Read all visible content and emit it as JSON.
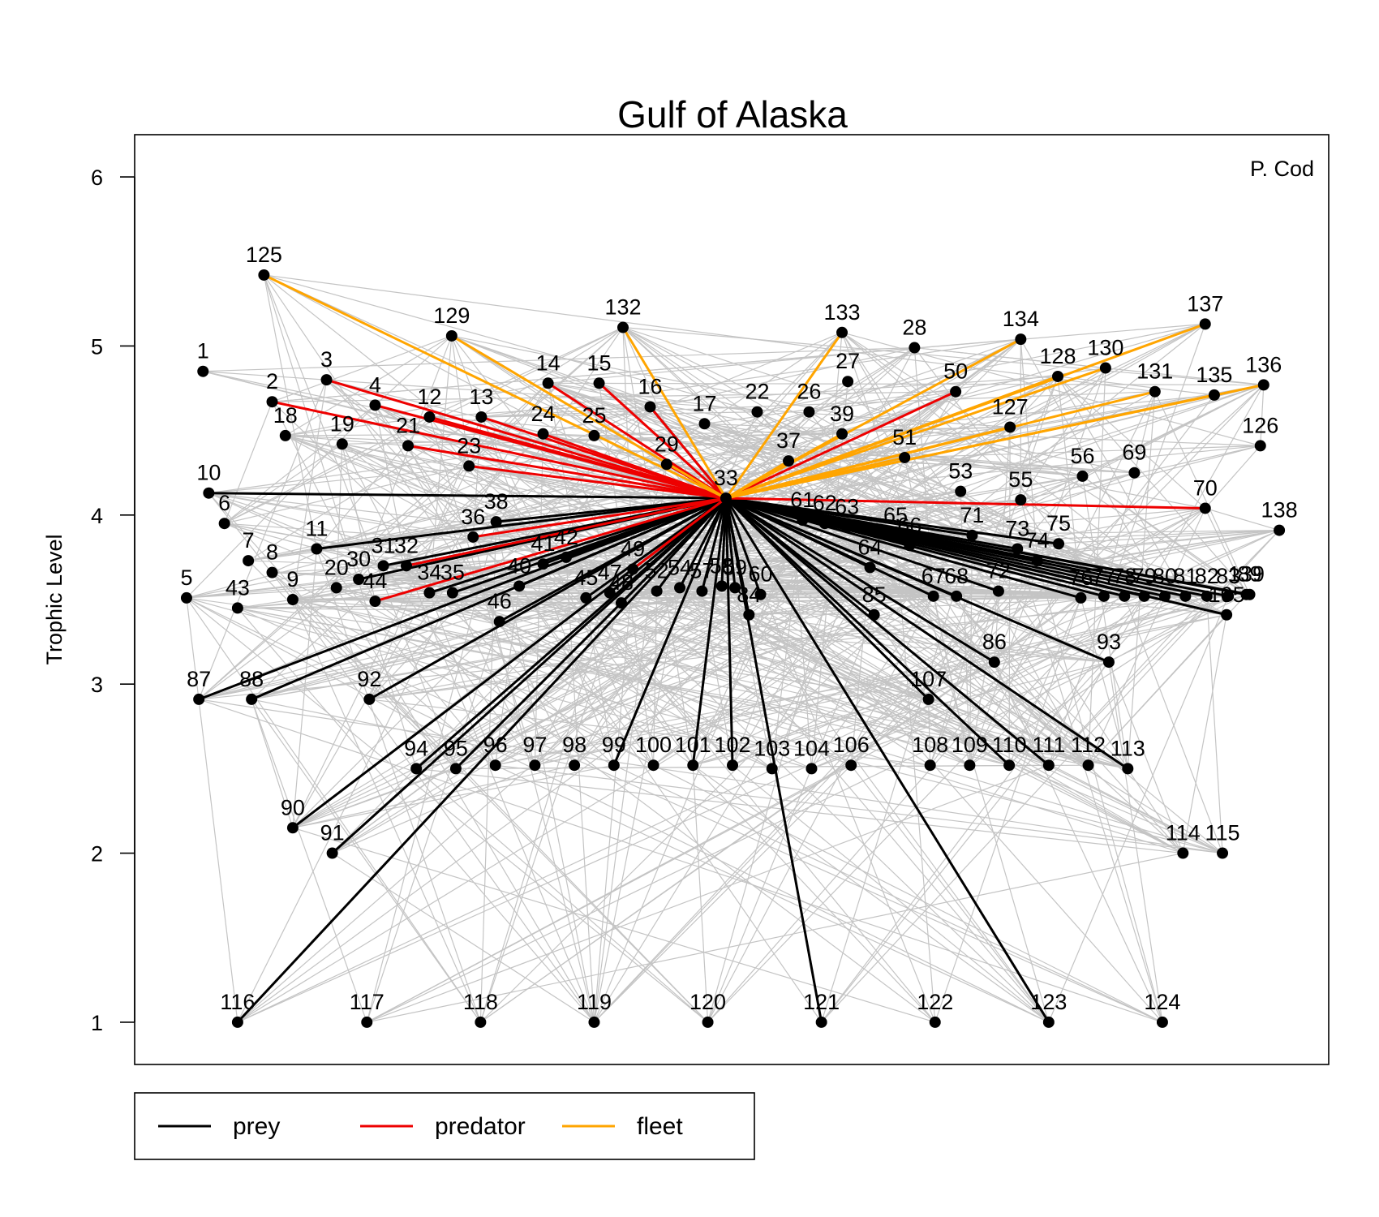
{
  "chart_data": {
    "type": "network",
    "title": "Gulf of Alaska",
    "ylabel": "Trophic Level",
    "xlabel": "",
    "ylim": [
      0.75,
      6.25
    ],
    "yticks": [
      1,
      2,
      3,
      4,
      5,
      6
    ],
    "xlim": [
      0,
      145
    ],
    "corner_label": "P. Cod",
    "focal_node": "33",
    "legend": [
      {
        "label": "prey",
        "color": "#000000"
      },
      {
        "label": "predator",
        "color": "#ee0000"
      },
      {
        "label": "fleet",
        "color": "#ffa500"
      }
    ],
    "nodes": [
      {
        "id": "1",
        "x": 8.3,
        "tl": 4.85
      },
      {
        "id": "2",
        "x": 16.7,
        "tl": 4.67
      },
      {
        "id": "3",
        "x": 23.3,
        "tl": 4.8
      },
      {
        "id": "4",
        "x": 29.2,
        "tl": 4.65
      },
      {
        "id": "5",
        "x": 6.3,
        "tl": 3.51
      },
      {
        "id": "6",
        "x": 10.9,
        "tl": 3.95
      },
      {
        "id": "7",
        "x": 13.8,
        "tl": 3.73
      },
      {
        "id": "8",
        "x": 16.7,
        "tl": 3.66
      },
      {
        "id": "9",
        "x": 19.2,
        "tl": 3.5
      },
      {
        "id": "10",
        "x": 9.0,
        "tl": 4.13
      },
      {
        "id": "11",
        "x": 22.1,
        "tl": 3.8
      },
      {
        "id": "12",
        "x": 35.8,
        "tl": 4.58
      },
      {
        "id": "13",
        "x": 42.1,
        "tl": 4.58
      },
      {
        "id": "14",
        "x": 50.2,
        "tl": 4.78
      },
      {
        "id": "15",
        "x": 56.4,
        "tl": 4.78
      },
      {
        "id": "16",
        "x": 62.6,
        "tl": 4.64
      },
      {
        "id": "17",
        "x": 69.2,
        "tl": 4.54
      },
      {
        "id": "18",
        "x": 18.3,
        "tl": 4.47
      },
      {
        "id": "19",
        "x": 25.2,
        "tl": 4.42
      },
      {
        "id": "20",
        "x": 24.5,
        "tl": 3.57
      },
      {
        "id": "21",
        "x": 33.2,
        "tl": 4.41
      },
      {
        "id": "22",
        "x": 75.6,
        "tl": 4.61
      },
      {
        "id": "23",
        "x": 40.6,
        "tl": 4.29
      },
      {
        "id": "24",
        "x": 49.6,
        "tl": 4.48
      },
      {
        "id": "25",
        "x": 55.8,
        "tl": 4.47
      },
      {
        "id": "26",
        "x": 81.9,
        "tl": 4.61
      },
      {
        "id": "27",
        "x": 86.6,
        "tl": 4.79
      },
      {
        "id": "28",
        "x": 94.7,
        "tl": 4.99
      },
      {
        "id": "29",
        "x": 64.6,
        "tl": 4.3
      },
      {
        "id": "30",
        "x": 27.2,
        "tl": 3.62
      },
      {
        "id": "31",
        "x": 30.2,
        "tl": 3.7
      },
      {
        "id": "32",
        "x": 33.0,
        "tl": 3.7
      },
      {
        "id": "33",
        "x": 71.8,
        "tl": 4.1
      },
      {
        "id": "34",
        "x": 35.8,
        "tl": 3.54
      },
      {
        "id": "35",
        "x": 38.6,
        "tl": 3.54
      },
      {
        "id": "36",
        "x": 41.1,
        "tl": 3.87
      },
      {
        "id": "37",
        "x": 79.4,
        "tl": 4.32
      },
      {
        "id": "38",
        "x": 43.9,
        "tl": 3.96
      },
      {
        "id": "39",
        "x": 85.9,
        "tl": 4.48
      },
      {
        "id": "40",
        "x": 46.7,
        "tl": 3.58
      },
      {
        "id": "41",
        "x": 49.6,
        "tl": 3.71
      },
      {
        "id": "42",
        "x": 52.4,
        "tl": 3.75
      },
      {
        "id": "43",
        "x": 12.5,
        "tl": 3.45
      },
      {
        "id": "44",
        "x": 29.2,
        "tl": 3.49
      },
      {
        "id": "45",
        "x": 54.8,
        "tl": 3.51
      },
      {
        "id": "46",
        "x": 44.3,
        "tl": 3.37
      },
      {
        "id": "47",
        "x": 57.7,
        "tl": 3.54
      },
      {
        "id": "48",
        "x": 59.1,
        "tl": 3.48
      },
      {
        "id": "49",
        "x": 60.5,
        "tl": 3.68
      },
      {
        "id": "50",
        "x": 99.7,
        "tl": 4.73
      },
      {
        "id": "51",
        "x": 93.5,
        "tl": 4.34
      },
      {
        "id": "52",
        "x": 63.4,
        "tl": 3.55
      },
      {
        "id": "53",
        "x": 100.3,
        "tl": 4.14
      },
      {
        "id": "54",
        "x": 66.2,
        "tl": 3.57
      },
      {
        "id": "55",
        "x": 107.6,
        "tl": 4.09
      },
      {
        "id": "56",
        "x": 115.1,
        "tl": 4.23
      },
      {
        "id": "57",
        "x": 68.9,
        "tl": 3.55
      },
      {
        "id": "58",
        "x": 71.3,
        "tl": 3.58
      },
      {
        "id": "59",
        "x": 72.9,
        "tl": 3.57
      },
      {
        "id": "60",
        "x": 76.0,
        "tl": 3.53
      },
      {
        "id": "61",
        "x": 81.1,
        "tl": 3.97
      },
      {
        "id": "62",
        "x": 83.8,
        "tl": 3.95
      },
      {
        "id": "63",
        "x": 86.5,
        "tl": 3.93
      },
      {
        "id": "64",
        "x": 89.3,
        "tl": 3.69
      },
      {
        "id": "65",
        "x": 92.4,
        "tl": 3.88
      },
      {
        "id": "66",
        "x": 94.1,
        "tl": 3.82
      },
      {
        "id": "67",
        "x": 97.0,
        "tl": 3.52
      },
      {
        "id": "68",
        "x": 99.8,
        "tl": 3.52
      },
      {
        "id": "69",
        "x": 121.4,
        "tl": 4.25
      },
      {
        "id": "70",
        "x": 130.0,
        "tl": 4.04
      },
      {
        "id": "71",
        "x": 101.7,
        "tl": 3.88
      },
      {
        "id": "72",
        "x": 104.9,
        "tl": 3.55
      },
      {
        "id": "73",
        "x": 107.2,
        "tl": 3.8
      },
      {
        "id": "74",
        "x": 109.6,
        "tl": 3.73
      },
      {
        "id": "75",
        "x": 112.2,
        "tl": 3.83
      },
      {
        "id": "76",
        "x": 114.9,
        "tl": 3.51
      },
      {
        "id": "77",
        "x": 117.7,
        "tl": 3.52
      },
      {
        "id": "78",
        "x": 120.2,
        "tl": 3.52
      },
      {
        "id": "79",
        "x": 122.6,
        "tl": 3.52
      },
      {
        "id": "80",
        "x": 125.1,
        "tl": 3.52
      },
      {
        "id": "81",
        "x": 127.6,
        "tl": 3.52
      },
      {
        "id": "82",
        "x": 130.2,
        "tl": 3.52
      },
      {
        "id": "83",
        "x": 132.8,
        "tl": 3.52
      },
      {
        "id": "84",
        "x": 74.6,
        "tl": 3.41
      },
      {
        "id": "85",
        "x": 89.8,
        "tl": 3.41
      },
      {
        "id": "86",
        "x": 104.4,
        "tl": 3.13
      },
      {
        "id": "87",
        "x": 7.8,
        "tl": 2.91
      },
      {
        "id": "88",
        "x": 14.2,
        "tl": 2.91
      },
      {
        "id": "89",
        "x": 135.4,
        "tl": 3.53
      },
      {
        "id": "90",
        "x": 19.2,
        "tl": 2.15
      },
      {
        "id": "91",
        "x": 24.0,
        "tl": 2.0
      },
      {
        "id": "92",
        "x": 28.5,
        "tl": 2.91
      },
      {
        "id": "93",
        "x": 118.3,
        "tl": 3.13
      },
      {
        "id": "94",
        "x": 34.2,
        "tl": 2.5
      },
      {
        "id": "95",
        "x": 39.0,
        "tl": 2.5
      },
      {
        "id": "96",
        "x": 43.8,
        "tl": 2.52
      },
      {
        "id": "97",
        "x": 48.6,
        "tl": 2.52
      },
      {
        "id": "98",
        "x": 53.4,
        "tl": 2.52
      },
      {
        "id": "99",
        "x": 58.2,
        "tl": 2.52
      },
      {
        "id": "100",
        "x": 63.0,
        "tl": 2.52
      },
      {
        "id": "101",
        "x": 67.8,
        "tl": 2.52
      },
      {
        "id": "102",
        "x": 72.6,
        "tl": 2.52
      },
      {
        "id": "103",
        "x": 77.4,
        "tl": 2.5
      },
      {
        "id": "104",
        "x": 82.2,
        "tl": 2.5
      },
      {
        "id": "105",
        "x": 132.6,
        "tl": 3.41
      },
      {
        "id": "106",
        "x": 87.0,
        "tl": 2.52
      },
      {
        "id": "107",
        "x": 96.4,
        "tl": 2.91
      },
      {
        "id": "108",
        "x": 96.6,
        "tl": 2.52
      },
      {
        "id": "109",
        "x": 101.4,
        "tl": 2.52
      },
      {
        "id": "110",
        "x": 106.2,
        "tl": 2.52
      },
      {
        "id": "111",
        "x": 111.0,
        "tl": 2.52
      },
      {
        "id": "112",
        "x": 115.8,
        "tl": 2.52
      },
      {
        "id": "113",
        "x": 120.6,
        "tl": 2.5
      },
      {
        "id": "114",
        "x": 127.3,
        "tl": 2.0
      },
      {
        "id": "115",
        "x": 132.1,
        "tl": 2.0
      },
      {
        "id": "116",
        "x": 12.5,
        "tl": 1.0
      },
      {
        "id": "117",
        "x": 28.2,
        "tl": 1.0
      },
      {
        "id": "118",
        "x": 42.0,
        "tl": 1.0
      },
      {
        "id": "119",
        "x": 55.8,
        "tl": 1.0
      },
      {
        "id": "120",
        "x": 69.6,
        "tl": 1.0
      },
      {
        "id": "121",
        "x": 83.4,
        "tl": 1.0
      },
      {
        "id": "122",
        "x": 97.2,
        "tl": 1.0
      },
      {
        "id": "123",
        "x": 111.0,
        "tl": 1.0
      },
      {
        "id": "124",
        "x": 124.8,
        "tl": 1.0
      },
      {
        "id": "125",
        "x": 15.7,
        "tl": 5.42
      },
      {
        "id": "126",
        "x": 136.7,
        "tl": 4.41
      },
      {
        "id": "127",
        "x": 106.3,
        "tl": 4.52
      },
      {
        "id": "128",
        "x": 112.1,
        "tl": 4.82
      },
      {
        "id": "129",
        "x": 38.5,
        "tl": 5.06
      },
      {
        "id": "130",
        "x": 117.9,
        "tl": 4.87
      },
      {
        "id": "131",
        "x": 123.9,
        "tl": 4.73
      },
      {
        "id": "132",
        "x": 59.3,
        "tl": 5.11
      },
      {
        "id": "133",
        "x": 85.9,
        "tl": 5.08
      },
      {
        "id": "134",
        "x": 107.6,
        "tl": 5.04
      },
      {
        "id": "135",
        "x": 131.1,
        "tl": 4.71
      },
      {
        "id": "136",
        "x": 137.1,
        "tl": 4.77
      },
      {
        "id": "137",
        "x": 130.0,
        "tl": 5.13
      },
      {
        "id": "138",
        "x": 139.0,
        "tl": 3.91
      },
      {
        "id": "139",
        "x": 135.0,
        "tl": 3.53
      }
    ],
    "prey_links": [
      "10",
      "11",
      "16",
      "30",
      "31",
      "32",
      "34",
      "35",
      "38",
      "40",
      "41",
      "42",
      "45",
      "46",
      "47",
      "48",
      "52",
      "54",
      "57",
      "58",
      "59",
      "60",
      "61",
      "62",
      "63",
      "64",
      "65",
      "66",
      "67",
      "68",
      "71",
      "72",
      "73",
      "74",
      "75",
      "76",
      "77",
      "78",
      "79",
      "80",
      "81",
      "82",
      "83",
      "84",
      "85",
      "86",
      "87",
      "88",
      "89",
      "90",
      "91",
      "92",
      "93",
      "94",
      "95",
      "99",
      "101",
      "102",
      "105",
      "107",
      "110",
      "111",
      "113",
      "116",
      "121",
      "123",
      "139"
    ],
    "predator_links": [
      "2",
      "3",
      "4",
      "12",
      "13",
      "14",
      "15",
      "16",
      "21",
      "23",
      "24",
      "29",
      "32",
      "36",
      "44",
      "49",
      "50",
      "70"
    ],
    "fleet_links": [
      "125",
      "129",
      "132",
      "133",
      "134",
      "135",
      "136",
      "137",
      "127",
      "128",
      "130",
      "131",
      "37",
      "39",
      "51"
    ]
  }
}
